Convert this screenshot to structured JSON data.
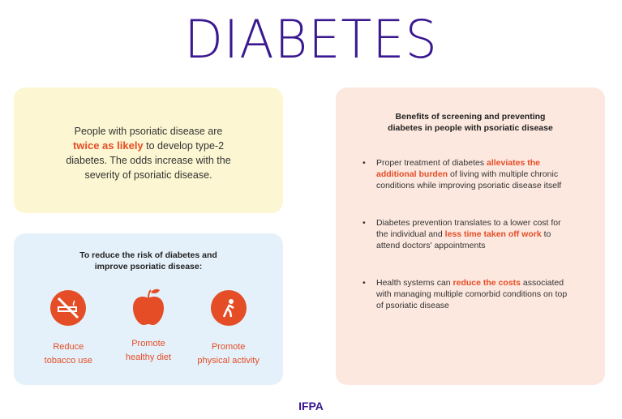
{
  "title": "DIABETES",
  "risk_card": {
    "pre": "People with psoriatic disease are ",
    "highlight": "twice as likely",
    "post": " to develop type-2 diabetes. The odds increase with the severity of psoriatic disease."
  },
  "reduce_card": {
    "heading": "To reduce the risk of diabetes and improve psoriatic disease:",
    "items": [
      {
        "icon": "no-smoking-icon",
        "line1": "Reduce",
        "line2": "tobacco use"
      },
      {
        "icon": "apple-icon",
        "line1": "Promote",
        "line2": "healthy diet"
      },
      {
        "icon": "exercise-icon",
        "line1": "Promote",
        "line2": "physical activity"
      }
    ]
  },
  "benefits_card": {
    "heading": "Benefits of screening and preventing diabetes in people with psoriatic disease",
    "bullets": [
      {
        "pre": "Proper treatment of diabetes ",
        "highlight": "alleviates the additional burden",
        "post": " of living with multiple chronic conditions while improving psoriatic disease itself"
      },
      {
        "pre": "Diabetes prevention translates to a lower cost for the individual and ",
        "highlight": "less time taken off work",
        "post": " to attend doctors' appointments"
      },
      {
        "pre": "Health systems can ",
        "highlight": "reduce the costs",
        "post": " associated with managing multiple comorbid conditions on top of psoriatic disease"
      }
    ]
  },
  "footer": "IFPA",
  "colors": {
    "accent": "#e44d26",
    "brand": "#3a1890"
  }
}
